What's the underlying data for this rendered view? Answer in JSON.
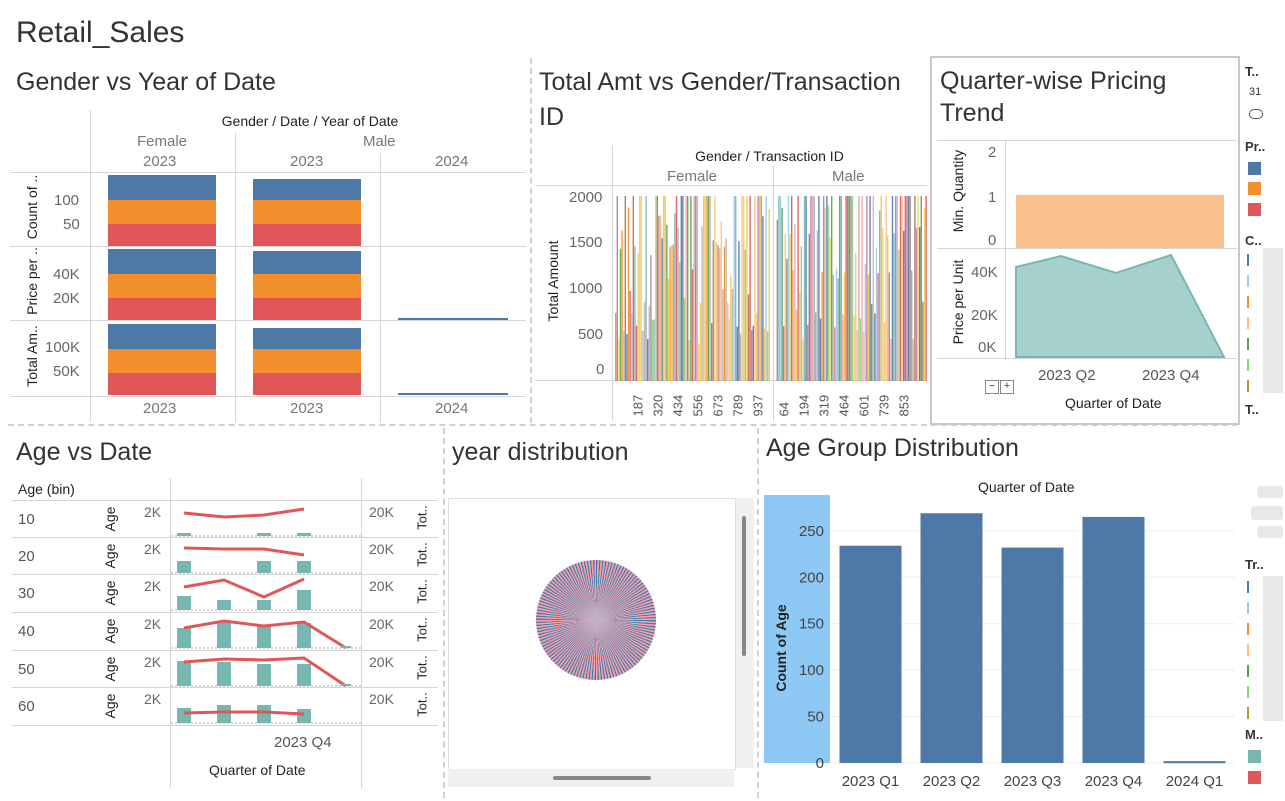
{
  "dashboard_title": "Retail_Sales",
  "colors": {
    "blue": "#4e79a7",
    "orange": "#f28e2b",
    "red": "#e15759",
    "teal": "#76b7b2",
    "peach": "#f9c28e"
  },
  "panel1": {
    "title": "Gender vs Year of Date",
    "header": "Gender  /  Date  /  Year of Date",
    "genders": [
      "Female",
      "Male"
    ],
    "col_years": [
      "2023",
      "2023",
      "2024"
    ],
    "row_labels": [
      "Count of ..",
      "Price per ..",
      "Total Am.."
    ],
    "row1_ticks": [
      "100",
      "50"
    ],
    "row2_ticks": [
      "40K",
      "20K"
    ],
    "row3_ticks": [
      "100K",
      "50K"
    ],
    "footer_years": [
      "2023",
      "2023",
      "2024"
    ]
  },
  "panel2": {
    "title_line1": "Total Amt vs Gender/Transaction",
    "title_line2": "ID",
    "header": "Gender  /  Transaction ID",
    "genders": [
      "Female",
      "Male"
    ],
    "ylabel": "Total Amount",
    "yticks": [
      "2000",
      "1500",
      "1000",
      "500",
      "0"
    ],
    "female_ids": [
      "187",
      "320",
      "434",
      "556",
      "673",
      "789",
      "937"
    ],
    "male_ids": [
      "64",
      "194",
      "319",
      "464",
      "601",
      "739",
      "853"
    ]
  },
  "panel3": {
    "title_line1": "Quarter-wise Pricing",
    "title_line2": "Trend",
    "upper_label": "Min. Quantity",
    "upper_ticks": [
      "2",
      "1",
      "0"
    ],
    "lower_label": "Price per Unit",
    "lower_ticks": [
      "40K",
      "20K",
      "0K"
    ],
    "x_ticks": [
      "2023 Q2",
      "2023 Q4"
    ],
    "xlabel": "Quarter of Date"
  },
  "legend_strip": {
    "t_label": "T..",
    "num": "31",
    "pr_label": "Pr..",
    "c_label": "C..",
    "t2_label": "T..",
    "tr_label": "Tr..",
    "m_label": "M.."
  },
  "panel4": {
    "title": "Age vs Date",
    "bin_header": "Age (bin)",
    "bins": [
      "10",
      "20",
      "30",
      "40",
      "50",
      "60"
    ],
    "left_axis_label": "Age",
    "left_tick": "2K",
    "right_tick": "20K",
    "right_axis_label": "Tot..",
    "x_tick": "2023 Q4",
    "xlabel": "Quarter of Date"
  },
  "panel5": {
    "title": "year distribution"
  },
  "panel6": {
    "title": "Age Group Distribution",
    "header": "Quarter of Date",
    "ylabel": "Count of Age"
  },
  "chart_data": {
    "type": "bar",
    "categories": [
      "2023 Q1",
      "2023 Q2",
      "2023 Q3",
      "2023 Q4",
      "2024 Q1"
    ],
    "values": [
      234,
      269,
      232,
      265,
      2
    ],
    "title": "Age Group Distribution",
    "xlabel": "Quarter of Date",
    "ylabel": "Count of Age",
    "ylim": [
      0,
      280
    ],
    "yticks": [
      0,
      50,
      100,
      150,
      200,
      250
    ],
    "grid": true,
    "color": "#4e79a7"
  }
}
